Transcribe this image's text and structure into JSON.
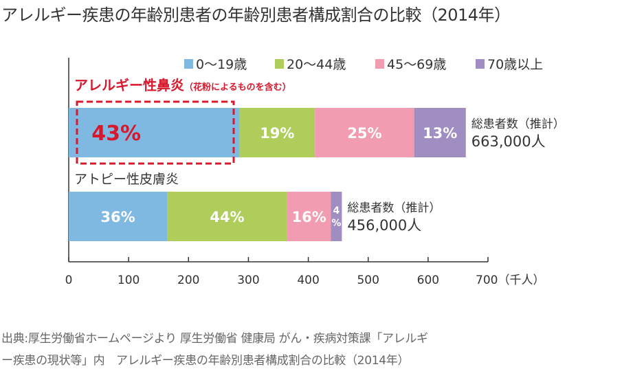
{
  "title": "アレルギー疾患の年齢別患者の年齢別患者構成割合の比較（2014年）",
  "chart_data": {
    "type": "bar",
    "orientation": "horizontal",
    "stacked": true,
    "xunit": "700（千人）",
    "xlim": [
      0,
      700
    ],
    "xticks": [
      "0",
      "100",
      "200",
      "300",
      "400",
      "500",
      "600",
      "700（千人）"
    ],
    "legend_position": "top",
    "series_names": [
      "0〜19歳",
      "20〜44歳",
      "45〜69歳",
      "70歳以上"
    ],
    "series_colors": [
      "#7fb8e1",
      "#afcd5b",
      "#f29cb2",
      "#a08dc2"
    ],
    "rows": [
      {
        "label": "アレルギー性鼻炎",
        "label_note": "（花粉によるものを含む）",
        "highlight_color": "#d7192e",
        "total_label": "総患者数（推計）",
        "total_value": "663,000人",
        "total": 663,
        "segments": [
          {
            "series": "0〜19歳",
            "pct": 43,
            "label": "43%"
          },
          {
            "series": "20〜44歳",
            "pct": 19,
            "label": "19%"
          },
          {
            "series": "45〜69歳",
            "pct": 25,
            "label": "25%"
          },
          {
            "series": "70歳以上",
            "pct": 13,
            "label": "13%"
          }
        ]
      },
      {
        "label": "アトピー性皮膚炎",
        "label_note": "",
        "total_label": "総患者数（推計）",
        "total_value": "456,000人",
        "total": 456,
        "segments": [
          {
            "series": "0〜19歳",
            "pct": 36,
            "label": "36%"
          },
          {
            "series": "20〜44歳",
            "pct": 44,
            "label": "44%"
          },
          {
            "series": "45〜69歳",
            "pct": 16,
            "label": "16%"
          },
          {
            "series": "70歳以上",
            "pct": 4,
            "label": "4%"
          }
        ]
      }
    ]
  },
  "source": {
    "line1": "出典:厚生労働省ホームページより 厚生労働省 健康局 がん・疾病対策課「アレルギ",
    "line2": "ー疾患の現状等」内　アレルギー疾患の年齢別患者構成割合の比較（2014年）"
  }
}
